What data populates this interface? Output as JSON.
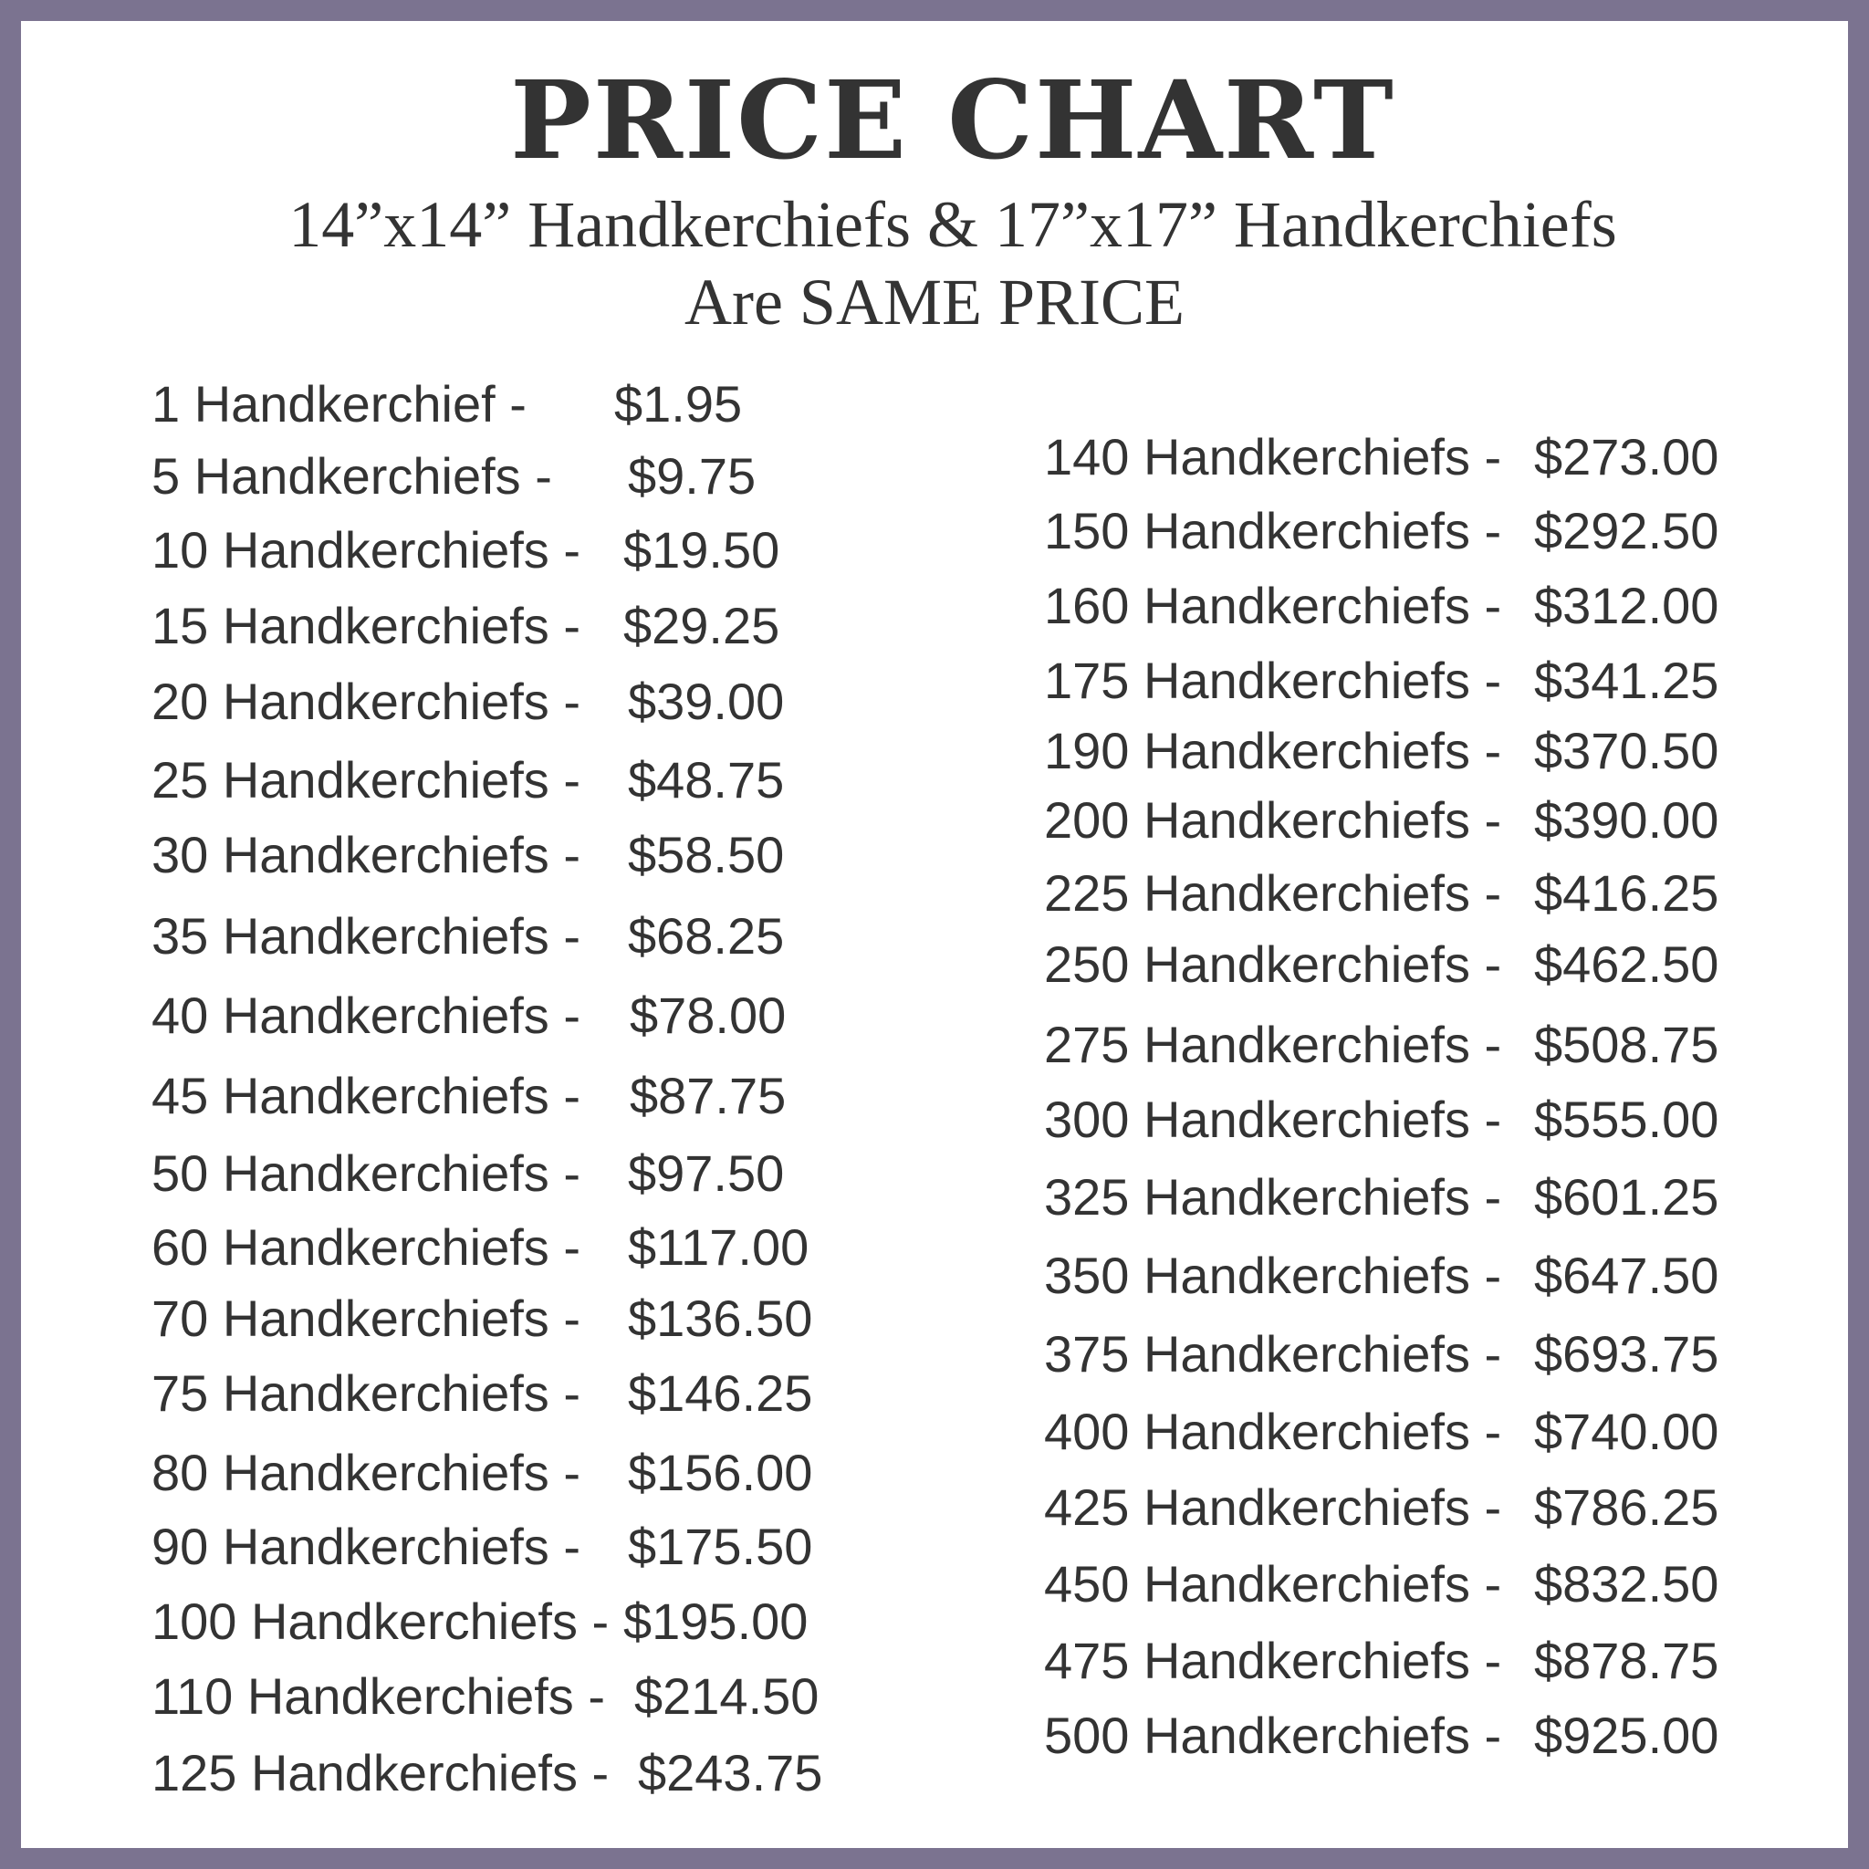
{
  "colors": {
    "border": "#7b7390",
    "text": "#333333",
    "background": "#ffffff"
  },
  "title": "PRICE CHART",
  "subtitle_line1": "14”x14” Handkerchiefs & 17”x17” Handkerchiefs",
  "subtitle_line2": "Are SAME PRICE",
  "left_column": [
    {
      "qty": "1 Handkerchief -",
      "price": "$1.95"
    },
    {
      "qty": "5 Handkerchiefs -",
      "price": "$9.75"
    },
    {
      "qty": "10 Handkerchiefs -",
      "price": "$19.50"
    },
    {
      "qty": "15 Handkerchiefs -",
      "price": "$29.25"
    },
    {
      "qty": "20 Handkerchiefs -",
      "price": "$39.00"
    },
    {
      "qty": "25 Handkerchiefs -",
      "price": "$48.75"
    },
    {
      "qty": "30 Handkerchiefs -",
      "price": "$58.50"
    },
    {
      "qty": "35 Handkerchiefs -",
      "price": "$68.25"
    },
    {
      "qty": "40 Handkerchiefs -",
      "price": "$78.00"
    },
    {
      "qty": "45 Handkerchiefs -",
      "price": "$87.75"
    },
    {
      "qty": "50 Handkerchiefs -",
      "price": "$97.50"
    },
    {
      "qty": "60 Handkerchiefs -",
      "price": "$117.00"
    },
    {
      "qty": "70 Handkerchiefs -",
      "price": "$136.50"
    },
    {
      "qty": "75 Handkerchiefs -",
      "price": "$146.25"
    },
    {
      "qty": "80 Handkerchiefs -",
      "price": "$156.00"
    },
    {
      "qty": "90 Handkerchiefs -",
      "price": "$175.50"
    },
    {
      "qty": "100 Handkerchiefs -",
      "price": "$195.00"
    },
    {
      "qty": "110 Handkerchiefs -",
      "price": "$214.50"
    },
    {
      "qty": "125 Handkerchiefs -",
      "price": "$243.75"
    }
  ],
  "right_column": [
    {
      "qty": "140 Handkerchiefs -",
      "price": "$273.00"
    },
    {
      "qty": "150 Handkerchiefs -",
      "price": "$292.50"
    },
    {
      "qty": "160 Handkerchiefs -",
      "price": "$312.00"
    },
    {
      "qty": "175 Handkerchiefs -",
      "price": "$341.25"
    },
    {
      "qty": "190 Handkerchiefs -",
      "price": "$370.50"
    },
    {
      "qty": "200 Handkerchiefs -",
      "price": "$390.00"
    },
    {
      "qty": "225 Handkerchiefs -",
      "price": "$416.25"
    },
    {
      "qty": "250 Handkerchiefs -",
      "price": "$462.50"
    },
    {
      "qty": "275 Handkerchiefs -",
      "price": "$508.75"
    },
    {
      "qty": "300 Handkerchiefs -",
      "price": "$555.00"
    },
    {
      "qty": "325 Handkerchiefs -",
      "price": "$601.25"
    },
    {
      "qty": "350 Handkerchiefs -",
      "price": "$647.50"
    },
    {
      "qty": "375 Handkerchiefs -",
      "price": "$693.75"
    },
    {
      "qty": "400 Handkerchiefs -",
      "price": "$740.00"
    },
    {
      "qty": "425 Handkerchiefs -",
      "price": "$786.25"
    },
    {
      "qty": "450 Handkerchiefs -",
      "price": "$832.50"
    },
    {
      "qty": "475 Handkerchiefs -",
      "price": "$878.75"
    },
    {
      "qty": "500 Handkerchiefs -",
      "price": "$925.00"
    }
  ]
}
